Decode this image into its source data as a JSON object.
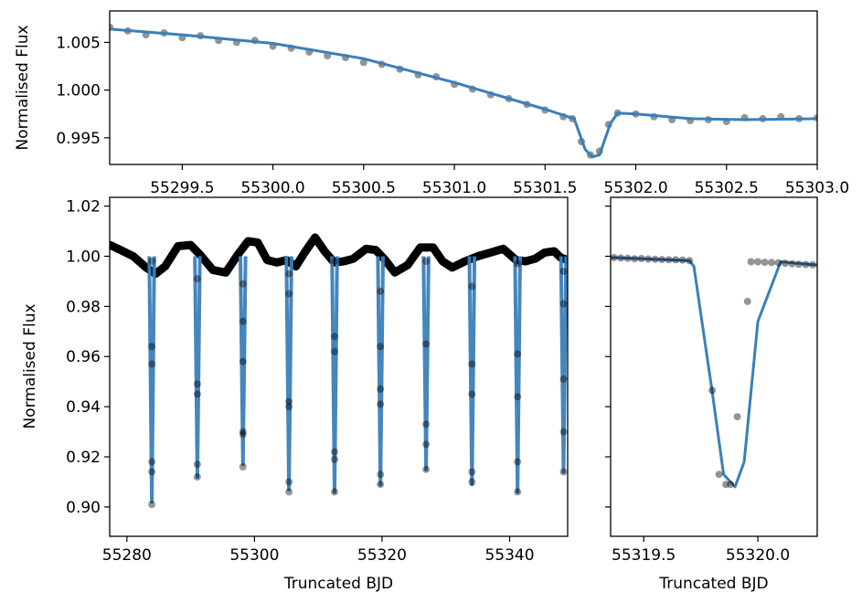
{
  "colors": {
    "model": "#3b7fb9",
    "points": "#000000",
    "background": "#ffffff"
  },
  "chart_data": [
    {
      "id": "top",
      "type": "line",
      "ylabel": "Normalised Flux",
      "xlabel": "",
      "xlim": [
        55299.1,
        55303.0
      ],
      "ylim": [
        0.9922,
        1.0083
      ],
      "xticks": [
        55299.5,
        55300.0,
        55300.5,
        55301.0,
        55301.5,
        55302.0,
        55302.5,
        55303.0
      ],
      "xtick_labels": [
        "55299.5",
        "55300.0",
        "55300.5",
        "55301.0",
        "55301.5",
        "55302.0",
        "55302.5",
        "55303.0"
      ],
      "yticks": [
        0.995,
        1.0,
        1.005
      ],
      "ytick_labels": [
        "0.995",
        "1.000",
        "1.005"
      ],
      "series": [
        {
          "style": "scatter",
          "x": [
            55299.1,
            55299.2,
            55299.3,
            55299.4,
            55299.5,
            55299.6,
            55299.7,
            55299.8,
            55299.9,
            55300.0,
            55300.1,
            55300.2,
            55300.3,
            55300.4,
            55300.5,
            55300.6,
            55300.7,
            55300.8,
            55300.9,
            55301.0,
            55301.1,
            55301.2,
            55301.3,
            55301.4,
            55301.5,
            55301.6,
            55301.65,
            55301.7,
            55301.75,
            55301.8,
            55301.85,
            55301.9,
            55302.0,
            55302.1,
            55302.2,
            55302.3,
            55302.4,
            55302.5,
            55302.6,
            55302.7,
            55302.8,
            55302.9,
            55303.0
          ],
          "y": [
            1.0066,
            1.0062,
            1.0058,
            1.006,
            1.0055,
            1.0057,
            1.0052,
            1.005,
            1.0052,
            1.0046,
            1.0044,
            1.004,
            1.0036,
            1.0034,
            1.0029,
            1.0027,
            1.0022,
            1.0016,
            1.0014,
            1.0006,
            1.0001,
            0.9995,
            0.9991,
            0.9985,
            0.9979,
            0.9972,
            0.997,
            0.9946,
            0.9932,
            0.9936,
            0.9964,
            0.9976,
            0.9975,
            0.9972,
            0.9969,
            0.9968,
            0.9969,
            0.9967,
            0.9971,
            0.997,
            0.9972,
            0.997,
            0.9971
          ]
        },
        {
          "style": "line",
          "x": [
            55299.1,
            55299.5,
            55300.0,
            55300.5,
            55301.0,
            55301.5,
            55301.66,
            55301.72,
            55301.76,
            55301.8,
            55301.86,
            55301.9,
            55302.0,
            55302.3,
            55302.6,
            55303.0
          ],
          "y": [
            1.0064,
            1.0058,
            1.0049,
            1.0033,
            1.0008,
            0.998,
            0.997,
            0.9938,
            0.993,
            0.9932,
            0.9965,
            0.9976,
            0.9975,
            0.997,
            0.9969,
            0.997
          ]
        }
      ]
    },
    {
      "id": "bottom-left",
      "type": "line",
      "ylabel": "Normalised Flux",
      "xlabel": "Truncated BJD",
      "xlim": [
        55277.3,
        55349.1
      ],
      "ylim": [
        0.8883,
        1.0235
      ],
      "xticks": [
        55280,
        55300,
        55320,
        55340
      ],
      "xtick_labels": [
        "55280",
        "55300",
        "55320",
        "55340"
      ],
      "yticks": [
        0.9,
        0.92,
        0.94,
        0.96,
        0.98,
        1.0,
        1.02
      ],
      "ytick_labels": [
        "0.90",
        "0.92",
        "0.94",
        "0.96",
        "0.98",
        "1.00",
        "1.02"
      ],
      "baseline": [
        [
          55277.3,
          1.0045
        ],
        [
          55279,
          1.0025
        ],
        [
          55281,
          1.0
        ],
        [
          55283,
          0.9955
        ],
        [
          55284.5,
          0.993
        ],
        [
          55286,
          0.996
        ],
        [
          55288,
          1.004
        ],
        [
          55290,
          1.0045
        ],
        [
          55291.5,
          1.0005
        ],
        [
          55293.5,
          0.9945
        ],
        [
          55295.5,
          0.9935
        ],
        [
          55297.5,
          1.001
        ],
        [
          55299,
          1.006
        ],
        [
          55300.5,
          1.0055
        ],
        [
          55302,
          0.9985
        ],
        [
          55303.5,
          0.9975
        ],
        [
          55305,
          0.9985
        ],
        [
          55306.5,
          0.996
        ],
        [
          55308,
          1.002
        ],
        [
          55309.5,
          1.0075
        ],
        [
          55311,
          1.002
        ],
        [
          55312.5,
          0.9975
        ],
        [
          55314,
          0.998
        ],
        [
          55315.5,
          0.999
        ],
        [
          55317.5,
          1.003
        ],
        [
          55319,
          1.0025
        ],
        [
          55320.5,
          0.9985
        ],
        [
          55322,
          0.9935
        ],
        [
          55324,
          0.9965
        ],
        [
          55326,
          1.0035
        ],
        [
          55328,
          1.0035
        ],
        [
          55329.5,
          0.998
        ],
        [
          55331,
          0.9955
        ],
        [
          55333,
          0.998
        ],
        [
          55335,
          1.0
        ],
        [
          55337,
          1.0015
        ],
        [
          55339,
          1.003
        ],
        [
          55341,
          0.9985
        ],
        [
          55342.5,
          0.998
        ],
        [
          55344,
          0.999
        ],
        [
          55345.5,
          1.0015
        ],
        [
          55347,
          1.002
        ],
        [
          55348,
          0.9995
        ],
        [
          55349.1,
          0.9985
        ]
      ],
      "transits": [
        {
          "x": 55283.9,
          "depth": 0.902
        },
        {
          "x": 55291.05,
          "depth": 0.912
        },
        {
          "x": 55298.2,
          "depth": 0.917
        },
        {
          "x": 55305.4,
          "depth": 0.907
        },
        {
          "x": 55312.55,
          "depth": 0.906
        },
        {
          "x": 55319.75,
          "depth": 0.909
        },
        {
          "x": 55326.9,
          "depth": 0.915
        },
        {
          "x": 55334.1,
          "depth": 0.909
        },
        {
          "x": 55341.25,
          "depth": 0.906
        },
        {
          "x": 55348.45,
          "depth": 0.914
        }
      ],
      "transit_points": [
        [
          55283.9,
          0.964
        ],
        [
          55283.9,
          0.957
        ],
        [
          55283.9,
          0.918
        ],
        [
          55283.9,
          0.914
        ],
        [
          55283.9,
          0.901
        ],
        [
          55283.9,
          0.998
        ],
        [
          55291.05,
          0.991
        ],
        [
          55291.05,
          0.949
        ],
        [
          55291.05,
          0.945
        ],
        [
          55291.05,
          0.917
        ],
        [
          55291.05,
          0.912
        ],
        [
          55298.2,
          0.989
        ],
        [
          55298.2,
          0.974
        ],
        [
          55298.2,
          0.958
        ],
        [
          55298.2,
          0.93
        ],
        [
          55298.2,
          0.929
        ],
        [
          55298.2,
          0.916
        ],
        [
          55305.4,
          0.993
        ],
        [
          55305.4,
          0.985
        ],
        [
          55305.4,
          0.942
        ],
        [
          55305.4,
          0.94
        ],
        [
          55305.4,
          0.91
        ],
        [
          55305.4,
          0.906
        ],
        [
          55312.55,
          0.998
        ],
        [
          55312.55,
          0.968
        ],
        [
          55312.55,
          0.962
        ],
        [
          55312.55,
          0.922
        ],
        [
          55312.55,
          0.919
        ],
        [
          55312.55,
          0.906
        ],
        [
          55319.75,
          0.986
        ],
        [
          55319.75,
          0.964
        ],
        [
          55319.75,
          0.947
        ],
        [
          55319.75,
          0.941
        ],
        [
          55319.75,
          0.913
        ],
        [
          55319.75,
          0.909
        ],
        [
          55326.9,
          0.998
        ],
        [
          55326.9,
          0.965
        ],
        [
          55326.9,
          0.933
        ],
        [
          55326.9,
          0.925
        ],
        [
          55326.9,
          0.915
        ],
        [
          55334.1,
          0.988
        ],
        [
          55334.1,
          0.957
        ],
        [
          55334.1,
          0.945
        ],
        [
          55334.1,
          0.914
        ],
        [
          55334.1,
          0.91
        ],
        [
          55341.25,
          0.997
        ],
        [
          55341.25,
          0.961
        ],
        [
          55341.25,
          0.944
        ],
        [
          55341.25,
          0.918
        ],
        [
          55341.25,
          0.906
        ],
        [
          55348.45,
          0.994
        ],
        [
          55348.45,
          0.981
        ],
        [
          55348.45,
          0.951
        ],
        [
          55348.45,
          0.93
        ],
        [
          55348.45,
          0.914
        ]
      ]
    },
    {
      "id": "bottom-right",
      "type": "line",
      "ylabel": "",
      "xlabel": "Truncated BJD",
      "xlim": [
        55319.355,
        55320.26
      ],
      "ylim": [
        0.8883,
        1.0235
      ],
      "xticks": [
        55319.5,
        55320.0
      ],
      "xtick_labels": [
        "55319.5",
        "55320.0"
      ],
      "yticks": [
        0.9,
        0.92,
        0.94,
        0.96,
        0.98,
        1.0,
        1.02
      ],
      "ytick_labels": [],
      "series": [
        {
          "style": "line",
          "x": [
            55319.355,
            55319.5,
            55319.7,
            55319.72,
            55319.8,
            55319.85,
            55319.9,
            55319.94,
            55320.0,
            55320.1,
            55320.26
          ],
          "y": [
            0.9995,
            0.999,
            0.9982,
            0.996,
            0.946,
            0.913,
            0.908,
            0.918,
            0.974,
            0.9978,
            0.9965
          ]
        },
        {
          "style": "scatter",
          "x": [
            55319.37,
            55319.4,
            55319.43,
            55319.46,
            55319.49,
            55319.52,
            55319.55,
            55319.58,
            55319.61,
            55319.64,
            55319.67,
            55319.7,
            55319.8,
            55319.83,
            55319.86,
            55319.88,
            55319.91,
            55319.955,
            55319.97,
            55320.0,
            55320.03,
            55320.06,
            55320.09,
            55320.12,
            55320.15,
            55320.18,
            55320.21,
            55320.24
          ],
          "y": [
            0.9995,
            0.9993,
            0.9992,
            0.999,
            0.9991,
            0.9989,
            0.9988,
            0.9987,
            0.9986,
            0.9986,
            0.9985,
            0.9983,
            0.9465,
            0.913,
            0.909,
            0.909,
            0.936,
            0.982,
            0.9978,
            0.9978,
            0.9976,
            0.9975,
            0.9974,
            0.9972,
            0.997,
            0.9968,
            0.9967,
            0.9966
          ]
        }
      ]
    }
  ]
}
